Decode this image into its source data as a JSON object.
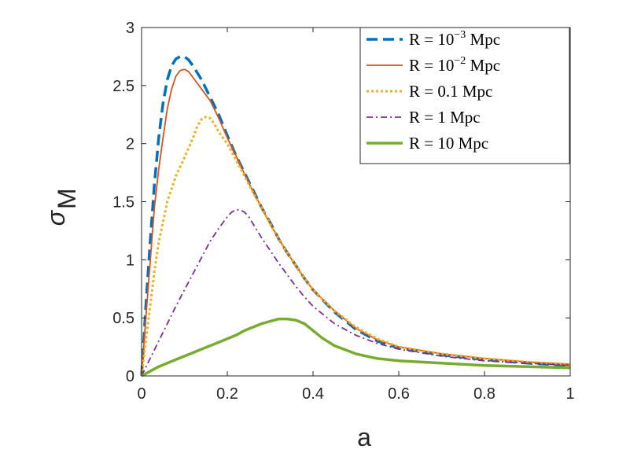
{
  "chart_data": {
    "type": "line",
    "title": "",
    "xlabel": "a",
    "ylabel_main": "σ",
    "ylabel_sub": "M",
    "xlim": [
      0,
      1
    ],
    "ylim": [
      0,
      3
    ],
    "xticks": [
      0,
      0.2,
      0.4,
      0.6,
      0.8,
      1
    ],
    "xtick_labels": [
      "0",
      "0.2",
      "0.4",
      "0.6",
      "0.8",
      "1"
    ],
    "yticks": [
      0,
      0.5,
      1,
      1.5,
      2,
      2.5,
      3
    ],
    "ytick_labels": [
      "0",
      "0.5",
      "1",
      "1.5",
      "2",
      "2.5",
      "3"
    ],
    "legend_position": "top-right",
    "series": [
      {
        "name": "R = 10⁻³ Mpc",
        "label_prefix": "R = 10",
        "label_exp": "−3",
        "label_suffix": " Mpc",
        "color": "#0072BD",
        "style": "dashed",
        "x": [
          0,
          0.01,
          0.02,
          0.03,
          0.04,
          0.05,
          0.06,
          0.07,
          0.08,
          0.09,
          0.1,
          0.11,
          0.12,
          0.14,
          0.16,
          0.18,
          0.2,
          0.22,
          0.24,
          0.26,
          0.28,
          0.3,
          0.32,
          0.34,
          0.36,
          0.38,
          0.4,
          0.45,
          0.5,
          0.55,
          0.6,
          0.7,
          0.8,
          0.9,
          1.0
        ],
        "y": [
          0,
          0.6,
          1.15,
          1.65,
          2.05,
          2.35,
          2.55,
          2.67,
          2.73,
          2.75,
          2.75,
          2.72,
          2.67,
          2.55,
          2.4,
          2.25,
          2.07,
          1.9,
          1.75,
          1.6,
          1.45,
          1.32,
          1.18,
          1.06,
          0.95,
          0.84,
          0.74,
          0.55,
          0.4,
          0.3,
          0.24,
          0.18,
          0.14,
          0.11,
          0.09
        ]
      },
      {
        "name": "R = 10⁻² Mpc",
        "label_prefix": "R = 10",
        "label_exp": "−2",
        "label_suffix": " Mpc",
        "color": "#D95319",
        "style": "solid",
        "x": [
          0,
          0.01,
          0.02,
          0.03,
          0.04,
          0.05,
          0.06,
          0.07,
          0.08,
          0.09,
          0.1,
          0.11,
          0.12,
          0.14,
          0.16,
          0.18,
          0.2,
          0.22,
          0.24,
          0.26,
          0.28,
          0.3,
          0.32,
          0.34,
          0.36,
          0.38,
          0.4,
          0.45,
          0.5,
          0.55,
          0.6,
          0.7,
          0.8,
          0.9,
          1.0
        ],
        "y": [
          0,
          0.5,
          0.98,
          1.45,
          1.78,
          2.05,
          2.3,
          2.47,
          2.58,
          2.63,
          2.64,
          2.62,
          2.57,
          2.47,
          2.37,
          2.22,
          2.05,
          1.9,
          1.74,
          1.59,
          1.45,
          1.31,
          1.18,
          1.06,
          0.95,
          0.84,
          0.74,
          0.56,
          0.41,
          0.31,
          0.25,
          0.19,
          0.15,
          0.12,
          0.1
        ]
      },
      {
        "name": "R = 0.1 Mpc",
        "label_prefix": "R = 0.1 Mpc",
        "label_exp": "",
        "label_suffix": "",
        "color": "#EDB120",
        "style": "dotted",
        "x": [
          0,
          0.01,
          0.02,
          0.03,
          0.04,
          0.06,
          0.08,
          0.1,
          0.12,
          0.13,
          0.14,
          0.15,
          0.16,
          0.17,
          0.18,
          0.2,
          0.22,
          0.24,
          0.26,
          0.28,
          0.3,
          0.32,
          0.34,
          0.36,
          0.38,
          0.4,
          0.45,
          0.5,
          0.55,
          0.6,
          0.7,
          0.8,
          0.9,
          1.0
        ],
        "y": [
          0,
          0.3,
          0.6,
          0.9,
          1.15,
          1.5,
          1.72,
          1.88,
          2.05,
          2.15,
          2.21,
          2.23,
          2.22,
          2.17,
          2.1,
          2.0,
          1.86,
          1.72,
          1.58,
          1.45,
          1.31,
          1.18,
          1.06,
          0.95,
          0.84,
          0.74,
          0.56,
          0.42,
          0.32,
          0.25,
          0.19,
          0.15,
          0.12,
          0.1
        ]
      },
      {
        "name": "R = 1 Mpc",
        "label_prefix": "R = 1 Mpc",
        "label_exp": "",
        "label_suffix": "",
        "color": "#7E2F8E",
        "style": "dashdot",
        "x": [
          0,
          0.02,
          0.04,
          0.06,
          0.08,
          0.1,
          0.12,
          0.14,
          0.16,
          0.18,
          0.2,
          0.21,
          0.22,
          0.23,
          0.24,
          0.25,
          0.26,
          0.28,
          0.3,
          0.32,
          0.34,
          0.36,
          0.38,
          0.4,
          0.45,
          0.5,
          0.55,
          0.6,
          0.7,
          0.8,
          0.9,
          1.0
        ],
        "y": [
          0,
          0.15,
          0.3,
          0.45,
          0.6,
          0.74,
          0.88,
          1.02,
          1.16,
          1.27,
          1.37,
          1.41,
          1.43,
          1.43,
          1.41,
          1.37,
          1.31,
          1.19,
          1.08,
          0.97,
          0.87,
          0.77,
          0.68,
          0.6,
          0.45,
          0.35,
          0.28,
          0.23,
          0.17,
          0.13,
          0.11,
          0.09
        ]
      },
      {
        "name": "R = 10 Mpc",
        "label_prefix": "R = 10 Mpc",
        "label_exp": "",
        "label_suffix": "",
        "color": "#77AC30",
        "style": "solid-thick",
        "x": [
          0,
          0.02,
          0.04,
          0.06,
          0.08,
          0.1,
          0.12,
          0.14,
          0.16,
          0.18,
          0.2,
          0.22,
          0.24,
          0.26,
          0.28,
          0.3,
          0.32,
          0.34,
          0.36,
          0.38,
          0.4,
          0.42,
          0.45,
          0.5,
          0.55,
          0.6,
          0.65,
          0.7,
          0.8,
          0.9,
          1.0
        ],
        "y": [
          0,
          0.04,
          0.08,
          0.11,
          0.14,
          0.17,
          0.2,
          0.23,
          0.26,
          0.29,
          0.32,
          0.35,
          0.39,
          0.42,
          0.45,
          0.47,
          0.49,
          0.49,
          0.48,
          0.45,
          0.39,
          0.33,
          0.26,
          0.19,
          0.15,
          0.13,
          0.12,
          0.11,
          0.09,
          0.08,
          0.07
        ]
      }
    ]
  }
}
